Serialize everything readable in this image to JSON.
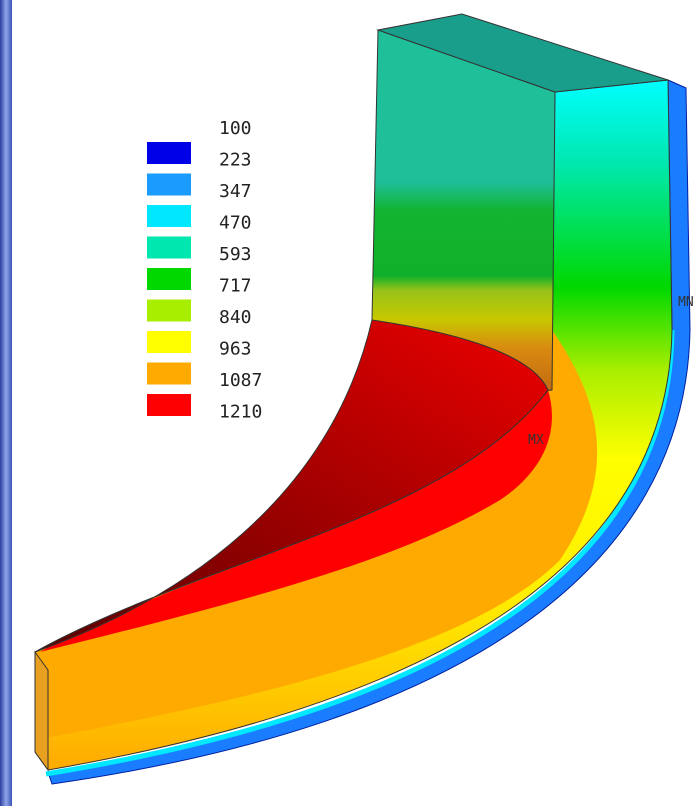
{
  "legend": {
    "labels": [
      "100",
      "223",
      "347",
      "470",
      "593",
      "717",
      "840",
      "963",
      "1087",
      "1210"
    ],
    "colors": [
      "#0000e8",
      "#1a9cff",
      "#00e8ff",
      "#00e8b0",
      "#00d800",
      "#a8ee00",
      "#ffff00",
      "#ffaa00",
      "#ff0000"
    ]
  },
  "markers": {
    "min": "MN",
    "max": "MX"
  }
}
